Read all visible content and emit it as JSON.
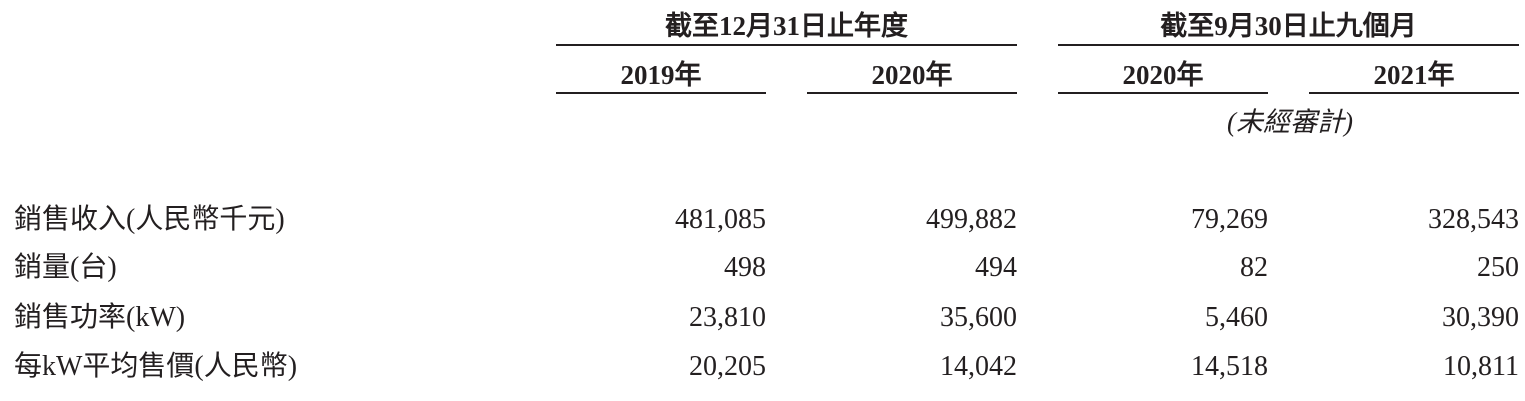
{
  "header": {
    "groups": [
      {
        "label": "截至12月31日止年度"
      },
      {
        "label": "截至9月30日止九個月"
      }
    ],
    "years": [
      "2019年",
      "2020年",
      "2020年",
      "2021年"
    ],
    "note": "(未經審計)"
  },
  "rows": [
    {
      "label": "銷售收入(人民幣千元)",
      "values": [
        "481,085",
        "499,882",
        "79,269",
        "328,543"
      ]
    },
    {
      "label": "銷量(台)",
      "values": [
        "498",
        "494",
        "82",
        "250"
      ]
    },
    {
      "label": "銷售功率(kW)",
      "values": [
        "23,810",
        "35,600",
        "5,460",
        "30,390"
      ]
    },
    {
      "label": "每kW平均售價(人民幣)",
      "values": [
        "20,205",
        "14,042",
        "14,518",
        "10,811"
      ]
    }
  ]
}
